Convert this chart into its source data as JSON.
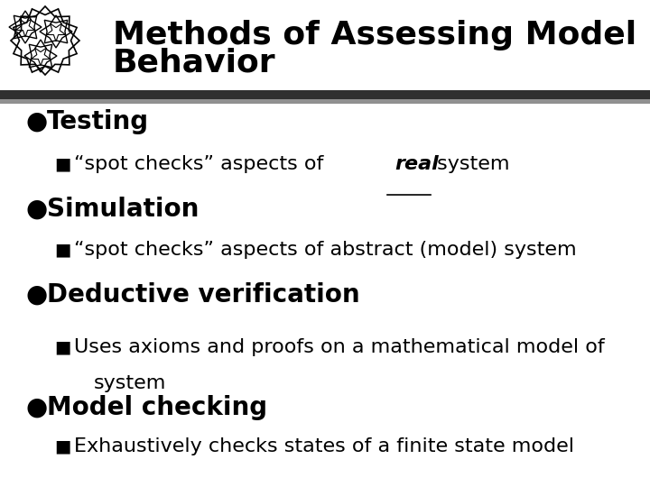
{
  "title_line1": "Methods of Assessing Model",
  "title_line2": "Behavior",
  "title_fontsize": 26,
  "title_color": "#000000",
  "background_color": "#ffffff",
  "bullet1_fontsize": 20,
  "bullet2_fontsize": 16,
  "bullet_items": [
    {
      "level": 1,
      "text": "Testing"
    },
    {
      "level": 2,
      "text_parts": [
        {
          "text": "“spot checks” aspects of ",
          "bold": false,
          "italic": false,
          "underline": false
        },
        {
          "text": "real",
          "bold": true,
          "italic": true,
          "underline": true
        },
        {
          "text": " system",
          "bold": false,
          "italic": false,
          "underline": false
        }
      ]
    },
    {
      "level": 1,
      "text": "Simulation"
    },
    {
      "level": 2,
      "text_parts": [
        {
          "text": "“spot checks” aspects of abstract (model) system",
          "bold": false,
          "italic": false,
          "underline": false
        }
      ]
    },
    {
      "level": 1,
      "text": "Deductive verification"
    },
    {
      "level": 2,
      "text_parts": [
        {
          "text": "Uses axioms and proofs on a mathematical model of\nsystem",
          "bold": false,
          "italic": false,
          "underline": false
        }
      ]
    },
    {
      "level": 1,
      "text": "Model checking"
    },
    {
      "level": 2,
      "text_parts": [
        {
          "text": "Exhaustively checks states of a finite state model",
          "bold": false,
          "italic": false,
          "underline": false
        }
      ]
    }
  ]
}
